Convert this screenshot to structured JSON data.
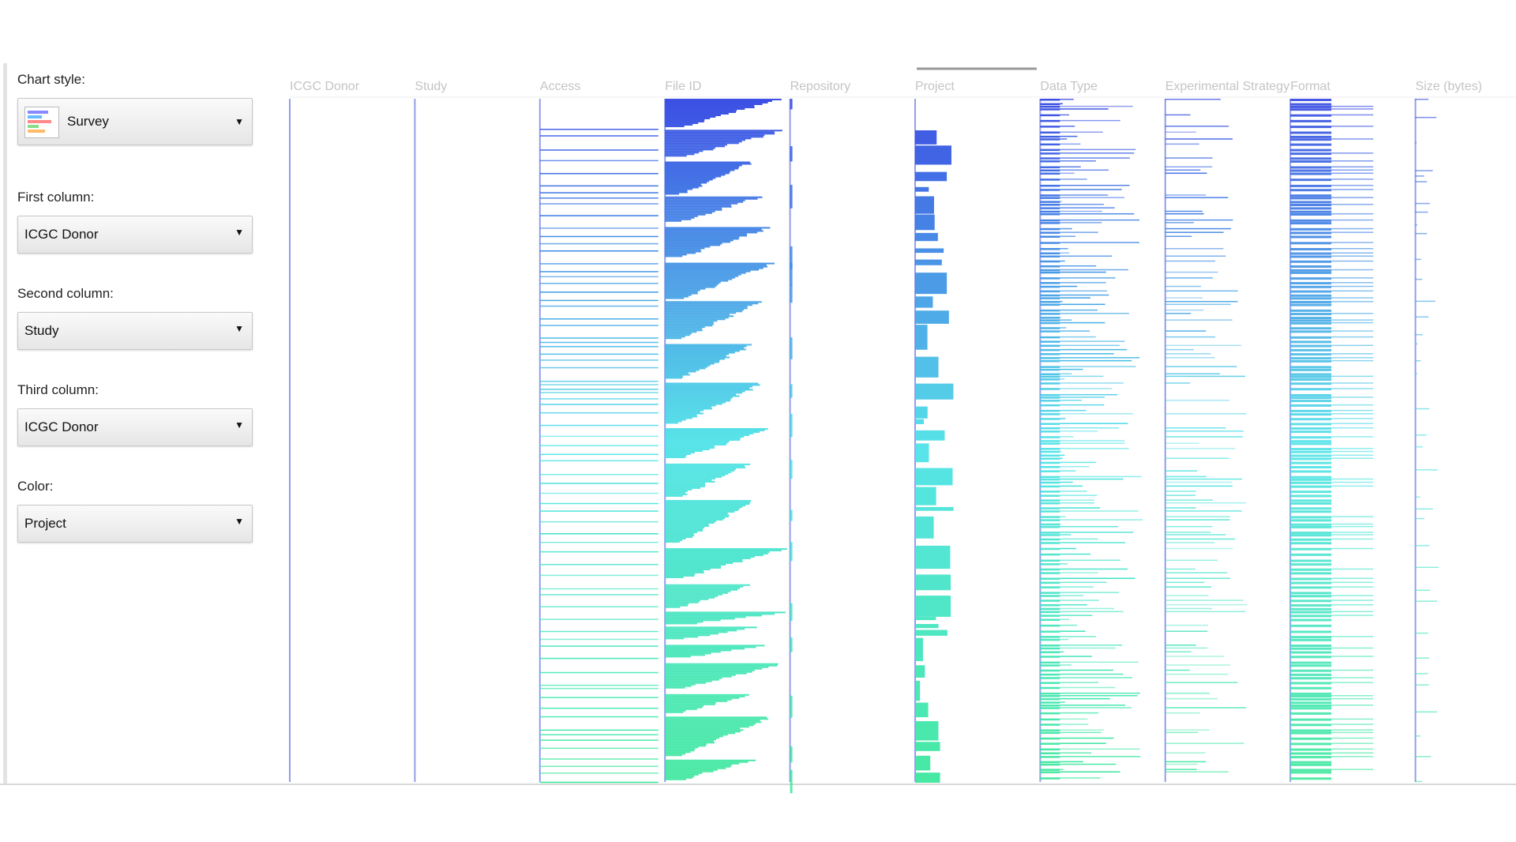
{
  "controls": [
    {
      "label": "Chart style:",
      "value": "Survey"
    },
    {
      "label": "First column:",
      "value": "ICGC Donor"
    },
    {
      "label": "Second column:",
      "value": "Study"
    },
    {
      "label": "Third column:",
      "value": "ICGC Donor"
    },
    {
      "label": "Color:",
      "value": "Project"
    }
  ],
  "columns": [
    "ICGC Donor",
    "Study",
    "Access",
    "File ID",
    "Repository",
    "Project",
    "Data Type",
    "Experimental Strategy",
    "Format",
    "Size (bytes)"
  ]
}
